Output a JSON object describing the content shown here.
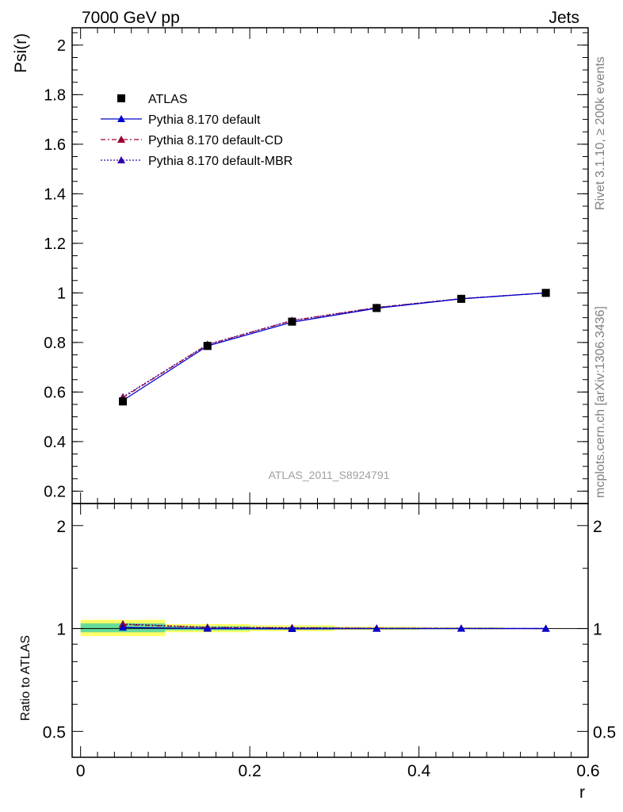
{
  "header": {
    "energy_label": "7000 GeV pp",
    "process_label": "Jets"
  },
  "side_labels": {
    "rivet": "Rivet 3.1.10, ≥ 200k events",
    "site": "mcplots.cern.ch [arXiv:1306.3436]"
  },
  "watermark": "ATLAS_2011_S8924791",
  "chart_data": [
    {
      "type": "line",
      "panel": "main",
      "ylabel": "Psi(r)",
      "xlabel": "",
      "xlim": [
        -0.01,
        0.6
      ],
      "ylim": [
        0.15,
        2.07
      ],
      "yticks": [
        0.2,
        0.4,
        0.6,
        0.8,
        1,
        1.2,
        1.4,
        1.6,
        1.8,
        2
      ],
      "ytick_labels": [
        "0.2",
        "0.4",
        "0.6",
        "0.8",
        "1",
        "1.2",
        "1.4",
        "1.6",
        "1.8",
        "2"
      ],
      "x": [
        0.05,
        0.15,
        0.25,
        0.35,
        0.45,
        0.55
      ],
      "series": [
        {
          "name": "ATLAS",
          "marker": "square",
          "color": "#000000",
          "values": [
            0.562,
            0.786,
            0.884,
            0.939,
            0.976,
            1.0
          ]
        },
        {
          "name": "Pythia 8.170 default",
          "marker": "triangle",
          "line": "solid",
          "color": "#0000cc",
          "values": [
            0.566,
            0.786,
            0.882,
            0.938,
            0.976,
            1.0
          ]
        },
        {
          "name": "Pythia 8.170 default-CD",
          "marker": "triangle",
          "line": "dashdot",
          "color": "#99002e",
          "values": [
            0.577,
            0.791,
            0.888,
            0.941,
            0.977,
            1.0
          ]
        },
        {
          "name": "Pythia 8.170 default-MBR",
          "marker": "triangle",
          "line": "dotted",
          "color": "#3300aa",
          "values": [
            0.58,
            0.792,
            0.889,
            0.941,
            0.977,
            1.0
          ]
        }
      ],
      "legend_position": "top-left"
    },
    {
      "type": "line",
      "panel": "ratio",
      "ylabel": "Ratio to ATLAS",
      "xlabel": "r",
      "xlim": [
        -0.01,
        0.6
      ],
      "ylim": [
        0.42,
        2.32
      ],
      "log_y": true,
      "yticks": [
        0.5,
        1,
        2
      ],
      "ytick_labels": [
        "0.5",
        "1",
        "2"
      ],
      "xticks": [
        0,
        0.2,
        0.4,
        0.6
      ],
      "xtick_labels": [
        "0",
        "0.2",
        "0.4",
        "0.6"
      ],
      "x": [
        0.05,
        0.15,
        0.25,
        0.35,
        0.45,
        0.55
      ],
      "bands": [
        {
          "x_low": 0.0,
          "x_high": 0.1,
          "yellow": [
            0.95,
            1.06
          ],
          "green": [
            0.975,
            1.035
          ]
        },
        {
          "x_low": 0.1,
          "x_high": 0.2,
          "yellow": [
            0.975,
            1.03
          ],
          "green": [
            0.988,
            1.015
          ]
        },
        {
          "x_low": 0.2,
          "x_high": 0.3,
          "yellow": [
            0.982,
            1.022
          ],
          "green": [
            0.992,
            1.01
          ]
        },
        {
          "x_low": 0.3,
          "x_high": 0.4,
          "yellow": [
            0.99,
            1.012
          ],
          "green": [
            0.995,
            1.006
          ]
        },
        {
          "x_low": 0.4,
          "x_high": 0.5,
          "yellow": [
            0.994,
            1.008
          ],
          "green": [
            0.997,
            1.004
          ]
        }
      ],
      "series": [
        {
          "name": "Pythia 8.170 default",
          "marker": "triangle",
          "line": "solid",
          "color": "#0000cc",
          "values": [
            1.007,
            1.0,
            0.998,
            0.999,
            1.0,
            1.0
          ]
        },
        {
          "name": "Pythia 8.170 default-CD",
          "marker": "triangle",
          "line": "dashdot",
          "color": "#99002e",
          "values": [
            1.027,
            1.006,
            1.004,
            1.002,
            1.001,
            1.0
          ]
        },
        {
          "name": "Pythia 8.170 default-MBR",
          "marker": "triangle",
          "line": "dotted",
          "color": "#3300aa",
          "values": [
            1.031,
            1.008,
            1.005,
            1.002,
            1.001,
            1.0
          ]
        }
      ]
    }
  ]
}
